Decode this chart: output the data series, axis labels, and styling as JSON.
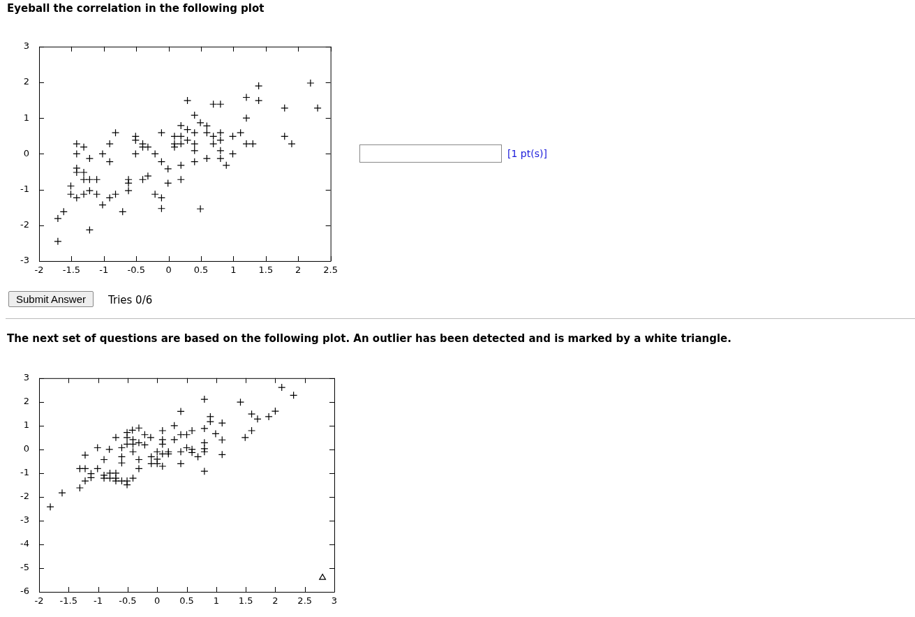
{
  "chart_data": [
    {
      "type": "scatter",
      "title": "Eyeball the correlation in the following plot",
      "xlim": [
        -2,
        2.5
      ],
      "xticks": [
        -2,
        -1.5,
        -1,
        -0.5,
        0,
        0.5,
        1,
        1.5,
        2,
        2.5
      ],
      "ylim": [
        -3,
        3
      ],
      "yticks": [
        -3,
        -2,
        -1,
        0,
        1,
        2,
        3
      ],
      "grid": false,
      "legend": false,
      "marker": "cross",
      "annotations": [
        "[1 pt(s)]",
        "Submit Answer",
        "Tries 0/6"
      ],
      "series": [
        {
          "color": "#000000",
          "x": [
            -1.71,
            -1.71,
            -1.62,
            -1.51,
            -1.51,
            -1.42,
            -1.31,
            -1.22,
            -1.11,
            -1.22,
            -1.42,
            -1.31,
            -1.42,
            -1.22,
            -1.42,
            -1.42,
            -1.31,
            -1.31,
            -1.22,
            -1.11,
            -1.02,
            -0.91,
            -0.82,
            -1.02,
            -0.91,
            -0.82,
            -0.91,
            -0.71,
            -0.62,
            -0.62,
            -0.62,
            -0.51,
            -0.51,
            -0.51,
            -0.4,
            -0.4,
            -0.32,
            -0.4,
            -0.32,
            -0.21,
            -0.21,
            -0.11,
            -0.11,
            -0.11,
            -0.11,
            -0.01,
            -0.01,
            0.19,
            0.09,
            0.19,
            0.09,
            0.19,
            0.09,
            0.19,
            0.19,
            0.29,
            0.4,
            0.29,
            0.4,
            0.29,
            0.4,
            0.4,
            0.4,
            0.49,
            0.59,
            0.59,
            0.69,
            0.69,
            0.59,
            0.49,
            0.69,
            0.8,
            0.8,
            0.8,
            0.8,
            0.8,
            0.89,
            0.99,
            0.99,
            1.11,
            1.2,
            1.2,
            1.2,
            1.3,
            1.39,
            1.39,
            1.79,
            1.79,
            1.9,
            2.19,
            2.3
          ],
          "values": [
            -2.45,
            -1.81,
            -1.62,
            -0.9,
            -1.13,
            -1.23,
            -1.13,
            -1.03,
            -1.13,
            -2.13,
            0.28,
            0.19,
            0,
            -0.13,
            -0.4,
            -0.52,
            -0.52,
            -0.72,
            -0.72,
            -0.72,
            -1.43,
            -1.23,
            -1.13,
            0,
            0.28,
            0.59,
            -0.22,
            -1.62,
            -0.72,
            -0.82,
            -1.03,
            0.49,
            0.38,
            0,
            0.28,
            0.19,
            0.19,
            -0.72,
            -0.62,
            0,
            -1.13,
            -1.23,
            -1.53,
            0.59,
            -0.22,
            -0.42,
            -0.82,
            0.79,
            0.49,
            0.49,
            0.28,
            0.28,
            0.19,
            -0.32,
            -0.72,
            1.49,
            1.08,
            0.68,
            0.59,
            0.38,
            0.28,
            0.09,
            -0.22,
            0.87,
            0.78,
            0.59,
            0.49,
            0.28,
            -0.13,
            -1.54,
            1.39,
            1.39,
            0.59,
            0.38,
            0.09,
            -0.13,
            -0.32,
            0.49,
            0,
            0.59,
            1.58,
            1,
            0.28,
            0.28,
            1.9,
            1.49,
            1.28,
            0.49,
            0.28,
            1.98,
            1.28
          ]
        }
      ]
    },
    {
      "type": "scatter",
      "title": "The next set of questions are based on the following plot. An outlier has been detected and is marked by a white triangle.",
      "xlim": [
        -2,
        3
      ],
      "xticks": [
        -2,
        -1.5,
        -1,
        -0.5,
        0,
        0.5,
        1,
        1.5,
        2,
        2.5,
        3
      ],
      "ylim": [
        -6,
        3
      ],
      "yticks": [
        -6,
        -5,
        -4,
        -3,
        -2,
        -1,
        0,
        1,
        2,
        3
      ],
      "grid": false,
      "legend": false,
      "series": [
        {
          "color": "#000000",
          "marker": "cross",
          "x": [
            -1.81,
            -1.61,
            -1.31,
            -1.22,
            -1.12,
            -1.12,
            -1.31,
            -1.22,
            -1.01,
            -1.22,
            -1.01,
            -0.9,
            -0.9,
            -0.9,
            -0.8,
            -0.7,
            -0.8,
            -0.7,
            -0.7,
            -0.6,
            -0.51,
            -0.51,
            -0.41,
            -0.81,
            -0.7,
            -0.6,
            -0.6,
            -0.6,
            -0.51,
            -0.51,
            -0.42,
            -0.31,
            -0.41,
            -0.51,
            -0.41,
            -0.41,
            -0.31,
            -0.21,
            -0.21,
            -0.11,
            -0.31,
            -0.31,
            -0.1,
            -0.1,
            0,
            0,
            0,
            0.09,
            0.09,
            0.09,
            0.09,
            0.09,
            0.19,
            0.19,
            0.29,
            0.29,
            0.4,
            0.4,
            0.4,
            0.5,
            0.4,
            0.5,
            0.59,
            0.59,
            0.59,
            0.69,
            0.8,
            0.8,
            0.8,
            0.8,
            0.8,
            0.8,
            0.9,
            0.9,
            0.99,
            1.1,
            1.1,
            1.1,
            1.41,
            1.49,
            1.6,
            1.6,
            1.7,
            1.89,
            2,
            2.11,
            2.31
          ],
          "values": [
            -2.42,
            -1.83,
            -1.62,
            -1.33,
            -1.02,
            -1.19,
            -0.81,
            -0.81,
            -0.81,
            -0.24,
            0.07,
            -0.43,
            -1.09,
            -1.21,
            -1,
            -1,
            -1.21,
            -1.21,
            -1.33,
            -1.33,
            -1.33,
            -1.49,
            -1.21,
            0,
            0.5,
            0.07,
            -0.31,
            -0.57,
            0.71,
            0.5,
            0.81,
            0.9,
            0.41,
            0.22,
            0.22,
            -0.1,
            0.28,
            0.62,
            0.19,
            0.5,
            -0.43,
            -0.81,
            -0.31,
            -0.6,
            -0.6,
            -0.1,
            -0.41,
            -0.71,
            0.79,
            0.41,
            0.22,
            -0.19,
            -0.19,
            -0.1,
            1,
            0.41,
            1.6,
            -0.1,
            -0.6,
            0.62,
            0.62,
            0.07,
            0.79,
            0,
            -0.13,
            -0.31,
            2.11,
            0.88,
            0.28,
            0.03,
            -0.1,
            -0.92,
            1.38,
            1.17,
            0.66,
            1.11,
            0.4,
            -0.22,
            1.99,
            0.5,
            1.49,
            0.79,
            1.28,
            1.38,
            1.61,
            2.61,
            2.28
          ]
        },
        {
          "color": "#000000",
          "marker": "triangle",
          "x": [
            2.8
          ],
          "values": [
            -5.4
          ]
        }
      ]
    }
  ]
}
